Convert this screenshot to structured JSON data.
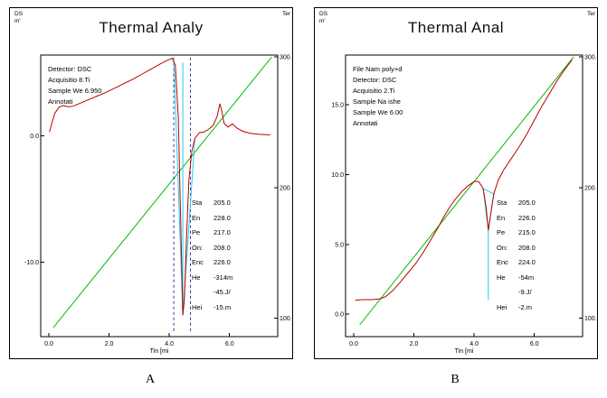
{
  "panels": [
    {
      "caption": "A",
      "title": "Thermal Analy",
      "y1_unit": [
        "DS",
        "m'"
      ],
      "y2_unit": "Ter",
      "info": [
        "Detector: DSC",
        "Acquisitio 8.Ti",
        "Sample We 6.950",
        "Annotati"
      ],
      "annotations": [
        {
          "label": "Sta",
          "value": "205.0"
        },
        {
          "label": "En",
          "value": "228.0"
        },
        {
          "label": "Pe",
          "value": "217.0"
        },
        {
          "label": "On:",
          "value": "208.0"
        },
        {
          "label": "Enc",
          "value": "226.0"
        },
        {
          "label": "He",
          "value": "-314m"
        },
        {
          "label": "",
          "value": "-45.J/"
        },
        {
          "label": "Hei",
          "value": "-15.m"
        }
      ]
    },
    {
      "caption": "B",
      "title": "Thermal Anal",
      "y1_unit": [
        "DS",
        "m'"
      ],
      "y2_unit": "Ter",
      "info": [
        "File Nam poly+d",
        "Detector: DSC",
        "Acquisitio 2.Ti",
        "Sample Na ishe",
        "Sample We 6.00",
        "Annotati"
      ],
      "annotations": [
        {
          "label": "Sta",
          "value": "205.0"
        },
        {
          "label": "En",
          "value": "226.0"
        },
        {
          "label": "Pe",
          "value": "215.0"
        },
        {
          "label": "On:",
          "value": "208.0"
        },
        {
          "label": "Enc",
          "value": "224.0"
        },
        {
          "label": "He",
          "value": "-54m"
        },
        {
          "label": "",
          "value": "-9.J/"
        },
        {
          "label": "Hei",
          "value": "-2.m"
        }
      ]
    }
  ],
  "chart_data": [
    {
      "type": "line",
      "title": "Thermal Analy",
      "x_label": "Tin [mi",
      "x_ticks": [
        0,
        2,
        4,
        6
      ],
      "x_range": [
        -0.27,
        7.6
      ],
      "left_axis": {
        "label": "DSC mW",
        "ticks": [
          0,
          -10
        ],
        "range": [
          -15.9,
          6.4
        ]
      },
      "right_axis": {
        "label": "Temp",
        "ticks": [
          300,
          200,
          100
        ],
        "range": [
          86,
          301.5
        ]
      },
      "series": [
        {
          "name": "temperature",
          "color": "#00bb00",
          "axis": "right",
          "width": 1,
          "points": [
            [
              0.15,
              93
            ],
            [
              7.4,
              300
            ]
          ]
        },
        {
          "name": "peak-marker-left",
          "color": "#000080",
          "axis": "left",
          "width": 0.8,
          "dash": "3,3",
          "points": [
            [
              4.15,
              6.2
            ],
            [
              4.15,
              -15.5
            ]
          ]
        },
        {
          "name": "peak-marker-right",
          "color": "#000080",
          "axis": "left",
          "width": 0.8,
          "dash": "3,3",
          "points": [
            [
              4.7,
              6.2
            ],
            [
              4.7,
              -15.5
            ]
          ]
        },
        {
          "name": "integration",
          "color": "#22ccee",
          "axis": "left",
          "width": 1,
          "points": [
            [
              4.15,
              6.15
            ],
            [
              4.45,
              -14.2
            ],
            [
              4.85,
              -0.2
            ]
          ]
        },
        {
          "name": "integration-drop",
          "color": "#22ccee",
          "axis": "left",
          "width": 1,
          "points": [
            [
              4.45,
              -14.2
            ],
            [
              4.45,
              5.8
            ]
          ]
        },
        {
          "name": "dsc",
          "color": "#bb0000",
          "axis": "left",
          "width": 1,
          "points": [
            [
              0.02,
              0.3
            ],
            [
              0.1,
              1.0
            ],
            [
              0.2,
              1.8
            ],
            [
              0.35,
              2.3
            ],
            [
              0.5,
              2.4
            ],
            [
              0.65,
              2.3
            ],
            [
              0.8,
              2.35
            ],
            [
              1.0,
              2.55
            ],
            [
              1.3,
              2.85
            ],
            [
              1.6,
              3.15
            ],
            [
              1.9,
              3.45
            ],
            [
              2.2,
              3.8
            ],
            [
              2.5,
              4.15
            ],
            [
              2.8,
              4.5
            ],
            [
              3.1,
              4.9
            ],
            [
              3.4,
              5.3
            ],
            [
              3.7,
              5.7
            ],
            [
              3.95,
              6.0
            ],
            [
              4.1,
              6.15
            ],
            [
              4.2,
              5.6
            ],
            [
              4.3,
              1.5
            ],
            [
              4.38,
              -7.0
            ],
            [
              4.45,
              -14.2
            ],
            [
              4.5,
              -13.0
            ],
            [
              4.58,
              -7.5
            ],
            [
              4.65,
              -3.5
            ],
            [
              4.75,
              -1.2
            ],
            [
              4.85,
              -0.2
            ],
            [
              5.0,
              0.25
            ],
            [
              5.15,
              0.3
            ],
            [
              5.3,
              0.5
            ],
            [
              5.45,
              0.8
            ],
            [
              5.58,
              1.5
            ],
            [
              5.68,
              2.55
            ],
            [
              5.75,
              1.9
            ],
            [
              5.82,
              1.0
            ],
            [
              5.95,
              0.7
            ],
            [
              6.1,
              0.95
            ],
            [
              6.25,
              0.6
            ],
            [
              6.45,
              0.35
            ],
            [
              6.7,
              0.2
            ],
            [
              7.0,
              0.12
            ],
            [
              7.35,
              0.08
            ]
          ]
        }
      ]
    },
    {
      "type": "line",
      "title": "Thermal Anal",
      "x_label": "Tin [mi",
      "x_ticks": [
        0,
        2,
        4,
        6
      ],
      "x_range": [
        -0.27,
        7.6
      ],
      "left_axis": {
        "label": "DSC mW",
        "ticks": [
          15,
          10,
          5,
          0
        ],
        "range": [
          -1.6,
          18.55
        ]
      },
      "right_axis": {
        "label": "Temp",
        "ticks": [
          300,
          200,
          100
        ],
        "range": [
          86,
          301.5
        ]
      },
      "series": [
        {
          "name": "temperature",
          "color": "#00bb00",
          "axis": "right",
          "width": 1,
          "points": [
            [
              0.2,
              95
            ],
            [
              7.3,
              300
            ]
          ]
        },
        {
          "name": "integration",
          "color": "#22ccee",
          "axis": "left",
          "width": 1,
          "points": [
            [
              4.3,
              9.0
            ],
            [
              4.47,
              6.0
            ],
            [
              4.65,
              8.6
            ]
          ]
        },
        {
          "name": "integration-drop",
          "color": "#22ccee",
          "axis": "left",
          "width": 1,
          "points": [
            [
              4.47,
              6.0
            ],
            [
              4.47,
              1.0
            ]
          ]
        },
        {
          "name": "integration-baseline",
          "color": "#22ccee",
          "axis": "left",
          "width": 1,
          "points": [
            [
              4.3,
              9.0
            ],
            [
              4.65,
              8.6
            ]
          ]
        },
        {
          "name": "dsc",
          "color": "#bb0000",
          "axis": "left",
          "width": 1,
          "points": [
            [
              0.05,
              1.0
            ],
            [
              0.3,
              1.05
            ],
            [
              0.6,
              1.05
            ],
            [
              0.85,
              1.1
            ],
            [
              1.05,
              1.25
            ],
            [
              1.3,
              1.7
            ],
            [
              1.55,
              2.3
            ],
            [
              1.8,
              2.95
            ],
            [
              2.05,
              3.6
            ],
            [
              2.3,
              4.4
            ],
            [
              2.55,
              5.3
            ],
            [
              2.8,
              6.2
            ],
            [
              3.0,
              7.0
            ],
            [
              3.2,
              7.7
            ],
            [
              3.4,
              8.3
            ],
            [
              3.6,
              8.8
            ],
            [
              3.8,
              9.2
            ],
            [
              4.0,
              9.5
            ],
            [
              4.15,
              9.5
            ],
            [
              4.3,
              9.0
            ],
            [
              4.4,
              7.6
            ],
            [
              4.47,
              6.0
            ],
            [
              4.55,
              7.2
            ],
            [
              4.65,
              8.6
            ],
            [
              4.8,
              9.6
            ],
            [
              5.0,
              10.4
            ],
            [
              5.25,
              11.2
            ],
            [
              5.5,
              12.0
            ],
            [
              5.75,
              12.9
            ],
            [
              6.0,
              13.9
            ],
            [
              6.25,
              14.9
            ],
            [
              6.5,
              15.8
            ],
            [
              6.75,
              16.7
            ],
            [
              7.0,
              17.5
            ],
            [
              7.25,
              18.2
            ]
          ]
        }
      ]
    }
  ]
}
